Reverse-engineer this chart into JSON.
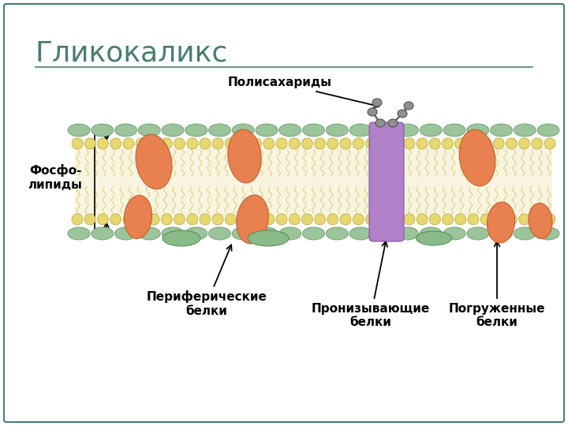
{
  "title": "Гликокаликс",
  "title_color": "#4a7c72",
  "title_fontsize": 26,
  "bg_color": "#ffffff",
  "border_color": "#4a7c72",
  "lipid_yellow_color": "#e8d870",
  "lipid_green_color": "#9cc49a",
  "protein_orange_color": "#e88050",
  "protein_purple_color": "#b080c8",
  "protein_green_color": "#88bb88",
  "tail_color": "#d4c860",
  "tail_bg_color": "#f8f4e0",
  "chain_color": "#505050",
  "chain_node_color": "#909090",
  "labels": {
    "polysaccharides": "Полисахариды",
    "phospholipids": "Фосфо-\nлипиды",
    "peripheral": "Периферические\nбелки",
    "penetrating": "Пронизывающие\nбелки",
    "submerged": "Погруженные\nбелки"
  },
  "label_fontsize": 11
}
